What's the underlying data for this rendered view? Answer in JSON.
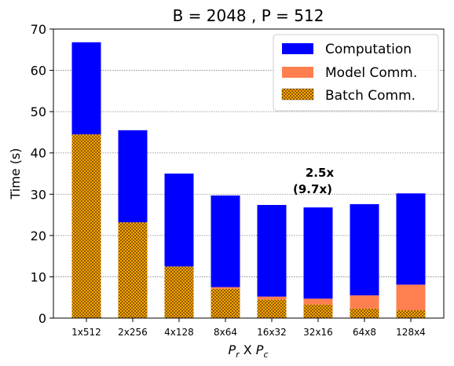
{
  "chart_data": {
    "type": "bar",
    "stacked": true,
    "title": "B = 2048 ,  P = 512",
    "xlabel": "P_r X P_c",
    "xlabel_parts": {
      "a": "P",
      "a_sub": "r",
      "mid": " X ",
      "b": "P",
      "b_sub": "c"
    },
    "ylabel": "Time (s)",
    "ylim": [
      0,
      70
    ],
    "yticks": [
      0,
      10,
      20,
      30,
      40,
      50,
      60,
      70
    ],
    "grid": "horizontal dotted",
    "legend_position": "top-right",
    "categories": [
      "1x512",
      "2x256",
      "4x128",
      "8x64",
      "16x32",
      "32x16",
      "64x8",
      "128x4"
    ],
    "series": [
      {
        "name": "Batch Comm.",
        "color": "#FFA500",
        "hatch": "crosshatch",
        "values": [
          44.5,
          23.2,
          12.5,
          7.1,
          4.5,
          3.3,
          2.3,
          1.9
        ]
      },
      {
        "name": "Model Comm.",
        "color": "#FF7F50",
        "values": [
          0.0,
          0.0,
          0.0,
          0.4,
          0.7,
          1.4,
          3.2,
          6.2
        ]
      },
      {
        "name": "Computation",
        "color": "#0000FF",
        "values": [
          22.3,
          22.3,
          22.5,
          22.2,
          22.2,
          22.1,
          22.1,
          22.1
        ]
      }
    ],
    "legend_order": [
      "Computation",
      "Model Comm.",
      "Batch Comm."
    ],
    "annotation": {
      "line1": "2.5x",
      "line2": "(9.7x)",
      "category": "32x16"
    }
  }
}
